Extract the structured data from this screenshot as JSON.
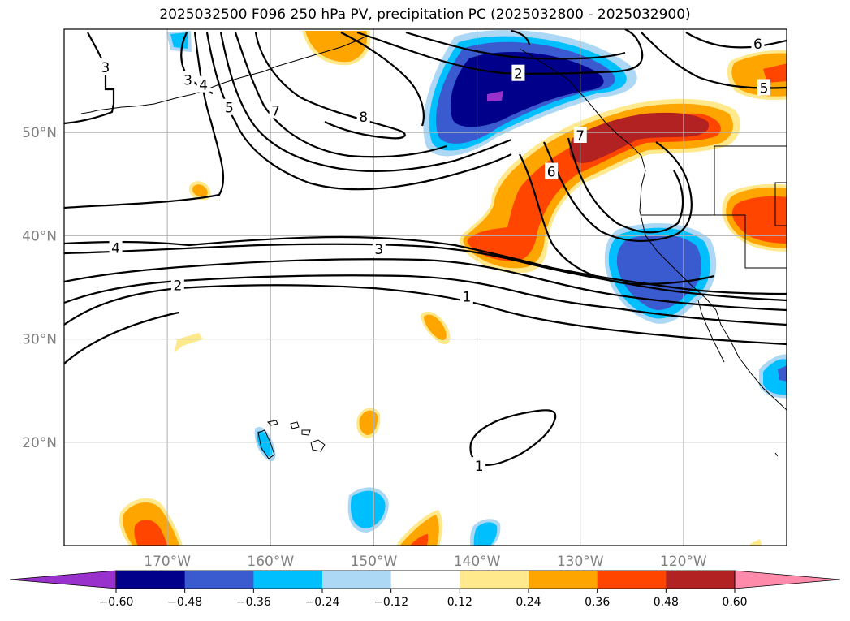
{
  "title": "2025032500 F096 250 hPa PV, precipitation PC (2025032800 - 2025032900)",
  "map": {
    "projection": "plate-carree",
    "lon_range": [
      -180,
      -110
    ],
    "lat_range": [
      10,
      60
    ],
    "grid": true,
    "x_ticks": [
      {
        "lon": -170,
        "label": "170°W"
      },
      {
        "lon": -160,
        "label": "160°W"
      },
      {
        "lon": -150,
        "label": "150°W"
      },
      {
        "lon": -140,
        "label": "140°W"
      },
      {
        "lon": -130,
        "label": "130°W"
      },
      {
        "lon": -120,
        "label": "120°W"
      }
    ],
    "y_ticks": [
      {
        "lat": 50,
        "label": "50°N"
      },
      {
        "lat": 40,
        "label": "40°N"
      },
      {
        "lat": 30,
        "label": "30°N"
      },
      {
        "lat": 20,
        "label": "20°N"
      }
    ],
    "pv_contour_labels": [
      {
        "text": "3",
        "lon": -176,
        "lat": 56.3
      },
      {
        "text": "3",
        "lon": -168,
        "lat": 55.1
      },
      {
        "text": "4",
        "lon": -166.5,
        "lat": 54.6
      },
      {
        "text": "5",
        "lon": -164,
        "lat": 52.4
      },
      {
        "text": "7",
        "lon": -159.5,
        "lat": 52.1
      },
      {
        "text": "8",
        "lon": -151,
        "lat": 51.5
      },
      {
        "text": "2",
        "lon": -136,
        "lat": 55.7
      },
      {
        "text": "7",
        "lon": -130,
        "lat": 49.7
      },
      {
        "text": "6",
        "lon": -132.8,
        "lat": 46.2
      },
      {
        "text": "6",
        "lon": -112.8,
        "lat": 58.6
      },
      {
        "text": "5",
        "lon": -112.2,
        "lat": 54.3
      },
      {
        "text": "4",
        "lon": -175,
        "lat": 38.8
      },
      {
        "text": "3",
        "lon": -149.5,
        "lat": 38.7
      },
      {
        "text": "2",
        "lon": -169,
        "lat": 35.2
      },
      {
        "text": "1",
        "lon": -141,
        "lat": 34.1
      },
      {
        "text": "1",
        "lon": -139.8,
        "lat": 17.7
      }
    ],
    "legend": {
      "placement": "bottom",
      "type": "colorbar",
      "extend": "both"
    }
  },
  "colorbar": {
    "ticks": [
      "−0.60",
      "−0.48",
      "−0.36",
      "−0.24",
      "−0.12",
      "0.12",
      "0.24",
      "0.36",
      "0.48",
      "0.60"
    ],
    "colors": [
      "#9932cc",
      "#00008b",
      "#3a5bcf",
      "#00bfff",
      "#add8f5",
      "#ffffff",
      "#ffe98c",
      "#ffa500",
      "#ff4500",
      "#b22222",
      "#ff8aaa"
    ]
  },
  "colors": {
    "neg_lt_060": "#9932cc",
    "neg_048": "#00008b",
    "neg_036": "#3a5bcf",
    "neg_024": "#00bfff",
    "neg_012": "#add8f5",
    "pos_012": "#ffe98c",
    "pos_024": "#ffa500",
    "pos_036": "#ff4500",
    "pos_048": "#b22222",
    "pos_gt_060": "#ff8aaa"
  }
}
